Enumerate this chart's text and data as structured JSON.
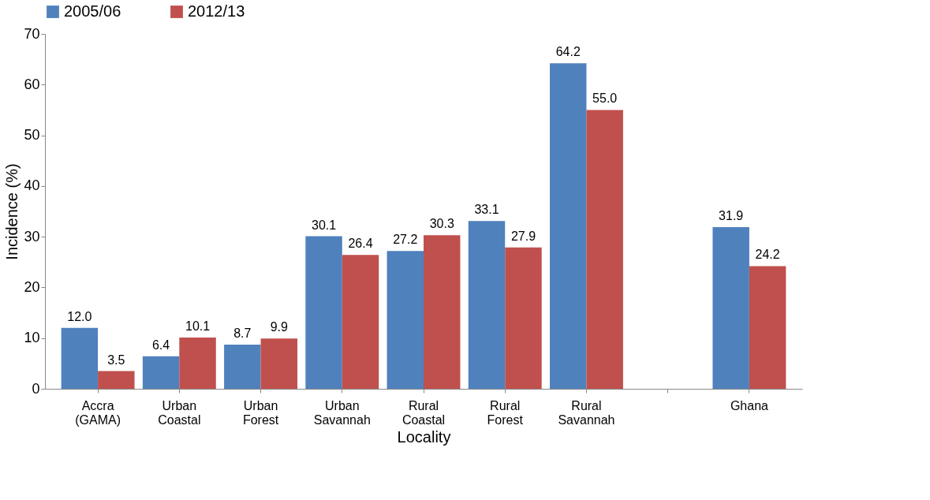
{
  "chart_data": {
    "type": "bar",
    "xlabel": "Locality",
    "ylabel": "Incidence (%)",
    "categories": [
      "Accra (GAMA)",
      "Urban Coastal",
      "Urban Forest",
      "Urban Savannah",
      "Rural Coastal",
      "Rural Forest",
      "Rural Savannah",
      null,
      "Ghana"
    ],
    "series": [
      {
        "name": "2005/06",
        "color": "#4f81bd",
        "values": [
          12.0,
          6.4,
          8.7,
          30.1,
          27.2,
          33.1,
          64.2,
          null,
          31.9
        ],
        "value_labels": [
          "12.0",
          "6.4",
          "8.7",
          "30.1",
          "27.2",
          "33.1",
          "64.2",
          null,
          "31.9"
        ]
      },
      {
        "name": "2012/13",
        "color": "#c0504d",
        "values": [
          3.5,
          10.1,
          9.9,
          26.4,
          30.3,
          27.9,
          55.0,
          null,
          24.2
        ],
        "value_labels": [
          "3.5",
          "10.1",
          "9.9",
          "26.4",
          "30.3",
          "27.9",
          "55.0",
          null,
          "24.2"
        ]
      }
    ],
    "ylim": [
      0,
      70
    ],
    "yticks": [
      0,
      10,
      20,
      30,
      40,
      50,
      60,
      70
    ],
    "grid": false,
    "legend": "top"
  }
}
